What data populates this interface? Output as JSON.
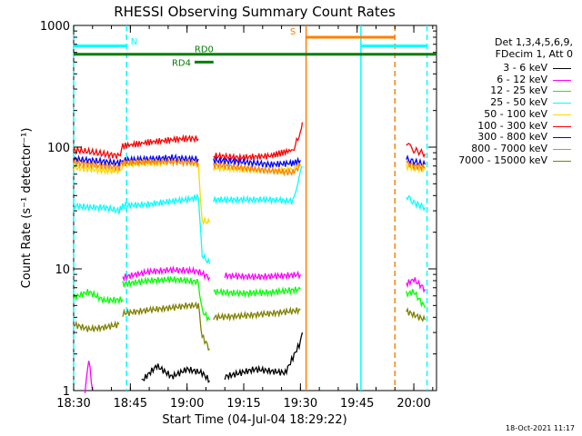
{
  "chart_data": {
    "type": "line",
    "title": "RHESSI Observing Summary Count Rates",
    "xlabel": "Start Time (04-Jul-04 18:29:22)",
    "ylabel": "Count Rate (s⁻¹ detector⁻¹)",
    "y_scale": "log",
    "ylim": [
      1,
      1000
    ],
    "xlim_minutes": [
      0,
      96
    ],
    "x_ticks": [
      {
        "label": "18:30",
        "minute": 0
      },
      {
        "label": "18:45",
        "minute": 15
      },
      {
        "label": "19:00",
        "minute": 30
      },
      {
        "label": "19:15",
        "minute": 45
      },
      {
        "label": "19:30",
        "minute": 60
      },
      {
        "label": "19:45",
        "minute": 75
      },
      {
        "label": "20:00",
        "minute": 90
      }
    ],
    "y_ticks": [
      {
        "label": "1",
        "value": 1
      },
      {
        "label": "10",
        "value": 10
      },
      {
        "label": "100",
        "value": 100
      },
      {
        "label": "1000",
        "value": 1000
      }
    ],
    "legend_header": [
      "Det 1,3,4,5,6,9,",
      "FDecim 1, Att 0"
    ],
    "series": [
      {
        "name": "3 - 6 keV",
        "color": "#000000",
        "segments": [
          [
            [
              18,
              1.2
            ],
            [
              22,
              1.6
            ],
            [
              26,
              1.3
            ],
            [
              30,
              1.5
            ],
            [
              34,
              1.4
            ],
            [
              36,
              1.2
            ]
          ],
          [
            [
              40,
              1.3
            ],
            [
              48,
              1.5
            ],
            [
              56,
              1.4
            ],
            [
              60,
              2.5
            ],
            [
              60.5,
              3
            ]
          ]
        ]
      },
      {
        "name": "6 - 12 keV",
        "color": "#ff00ff",
        "segments": [
          [
            [
              3,
              1.0
            ],
            [
              4,
              1.8
            ],
            [
              5,
              1.0
            ]
          ],
          [
            [
              13,
              8.5
            ],
            [
              20,
              9.5
            ],
            [
              26,
              9.8
            ],
            [
              30,
              9.7
            ],
            [
              33,
              9.5
            ],
            [
              36,
              8.5
            ]
          ],
          [
            [
              40,
              8.8
            ],
            [
              48,
              8.6
            ],
            [
              56,
              8.8
            ],
            [
              60,
              9.0
            ]
          ],
          [
            [
              88,
              7.5
            ],
            [
              90,
              8.2
            ],
            [
              93,
              6.8
            ]
          ]
        ]
      },
      {
        "name": "12 - 25 keV",
        "color": "#00ff00",
        "segments": [
          [
            [
              0,
              5.8
            ],
            [
              4,
              6.5
            ],
            [
              8,
              5.5
            ],
            [
              13,
              5.6
            ]
          ],
          [
            [
              13,
              7.5
            ],
            [
              20,
              8.0
            ],
            [
              26,
              8.2
            ],
            [
              30,
              8.0
            ],
            [
              33,
              7.8
            ],
            [
              34,
              4.5
            ],
            [
              36,
              3.8
            ]
          ],
          [
            [
              37,
              6.5
            ],
            [
              44,
              6.3
            ],
            [
              52,
              6.4
            ],
            [
              60,
              6.8
            ]
          ],
          [
            [
              88,
              6.2
            ],
            [
              90,
              6.5
            ],
            [
              93,
              4.8
            ]
          ]
        ]
      },
      {
        "name": "25 - 50 keV",
        "color": "#00ffff",
        "segments": [
          [
            [
              0,
              33
            ],
            [
              4,
              32
            ],
            [
              8,
              32
            ],
            [
              12,
              30
            ],
            [
              13,
              33
            ],
            [
              20,
              34
            ],
            [
              26,
              36
            ],
            [
              30,
              37
            ],
            [
              33,
              39
            ],
            [
              34,
              13
            ],
            [
              36,
              11
            ]
          ],
          [
            [
              37,
              37
            ],
            [
              44,
              37
            ],
            [
              52,
              37
            ],
            [
              58,
              36
            ],
            [
              60,
              60
            ],
            [
              60.5,
              70
            ]
          ],
          [
            [
              88,
              40
            ],
            [
              90,
              35
            ],
            [
              93,
              32
            ]
          ]
        ]
      },
      {
        "name": "50 - 100 keV",
        "color": "#ffd700",
        "segments": [
          [
            [
              0,
              68
            ],
            [
              4,
              66
            ],
            [
              8,
              64
            ],
            [
              12,
              64
            ],
            [
              13,
              72
            ],
            [
              20,
              74
            ],
            [
              26,
              76
            ],
            [
              30,
              75
            ],
            [
              33,
              73
            ],
            [
              34,
              25
            ],
            [
              36,
              24
            ]
          ],
          [
            [
              37,
              68
            ],
            [
              44,
              66
            ],
            [
              52,
              64
            ],
            [
              58,
              66
            ],
            [
              60,
              74
            ]
          ],
          [
            [
              88,
              70
            ],
            [
              90,
              68
            ],
            [
              93,
              66
            ]
          ]
        ]
      },
      {
        "name": "100 - 300 keV",
        "color": "#ff0000",
        "segments": [
          [
            [
              0,
              95
            ],
            [
              4,
              92
            ],
            [
              8,
              88
            ],
            [
              12,
              85
            ],
            [
              13,
              102
            ],
            [
              20,
              110
            ],
            [
              26,
              115
            ],
            [
              30,
              118
            ],
            [
              33,
              117
            ]
          ],
          [
            [
              37,
              85
            ],
            [
              44,
              82
            ],
            [
              52,
              85
            ],
            [
              58,
              95
            ],
            [
              60,
              130
            ],
            [
              60.5,
              160
            ]
          ],
          [
            [
              88,
              105
            ],
            [
              90,
              95
            ],
            [
              93,
              88
            ]
          ]
        ]
      },
      {
        "name": "300 - 800 keV",
        "color": "#0000ff",
        "segments": [
          [
            [
              0,
              80
            ],
            [
              4,
              78
            ],
            [
              8,
              76
            ],
            [
              12,
              74
            ],
            [
              13,
              78
            ],
            [
              20,
              80
            ],
            [
              26,
              82
            ],
            [
              30,
              80
            ],
            [
              33,
              80
            ]
          ],
          [
            [
              37,
              78
            ],
            [
              44,
              76
            ],
            [
              52,
              72
            ],
            [
              58,
              74
            ],
            [
              60,
              78
            ]
          ],
          [
            [
              88,
              80
            ],
            [
              90,
              76
            ],
            [
              93,
              72
            ]
          ]
        ]
      },
      {
        "name": "800 - 7000 keV",
        "color": "#ff8000",
        "segments": [
          [
            [
              0,
              75
            ],
            [
              4,
              72
            ],
            [
              8,
              70
            ],
            [
              12,
              68
            ],
            [
              13,
              74
            ],
            [
              20,
              76
            ],
            [
              26,
              76
            ],
            [
              30,
              75
            ],
            [
              33,
              74
            ]
          ],
          [
            [
              37,
              72
            ],
            [
              44,
              68
            ],
            [
              52,
              64
            ],
            [
              58,
              62
            ],
            [
              60,
              70
            ]
          ],
          [
            [
              88,
              74
            ],
            [
              90,
              70
            ],
            [
              93,
              68
            ]
          ]
        ]
      },
      {
        "name": "7000 - 15000 keV",
        "color": "#808000",
        "segments": [
          [
            [
              0,
              3.5
            ],
            [
              4,
              3.2
            ],
            [
              8,
              3.3
            ],
            [
              12,
              3.5
            ]
          ],
          [
            [
              13,
              4.3
            ],
            [
              20,
              4.6
            ],
            [
              26,
              4.8
            ],
            [
              30,
              5.0
            ],
            [
              33,
              5.0
            ],
            [
              34,
              2.8
            ],
            [
              36,
              2.2
            ]
          ],
          [
            [
              37,
              4.0
            ],
            [
              44,
              4.1
            ],
            [
              52,
              4.3
            ],
            [
              58,
              4.5
            ],
            [
              60,
              4.6
            ]
          ],
          [
            [
              88,
              4.5
            ],
            [
              90,
              4.2
            ],
            [
              93,
              3.8
            ]
          ]
        ]
      }
    ],
    "annotations": {
      "vertical_lines": [
        {
          "minute": 0,
          "color": "#00ffff",
          "style": "dash"
        },
        {
          "minute": 14,
          "color": "#00ffff",
          "style": "dash"
        },
        {
          "minute": 61.5,
          "color": "#ff8000",
          "style": "solid"
        },
        {
          "minute": 76,
          "color": "#00ffff",
          "style": "solid"
        },
        {
          "minute": 85,
          "color": "#ff8000",
          "style": "dash"
        },
        {
          "minute": 93.5,
          "color": "#00ffff",
          "style": "dash"
        }
      ],
      "bars": [
        {
          "label": "",
          "color": "#00ffff",
          "from": 0,
          "to": 14,
          "value": 680
        },
        {
          "label": "",
          "color": "#00ffff",
          "from": 76,
          "to": 93.5,
          "value": 680
        },
        {
          "label": "",
          "color": "#ff8000",
          "from": 61.5,
          "to": 85,
          "value": 800
        },
        {
          "label": "",
          "color": "#008000",
          "from": 0,
          "to": 96,
          "value": 580
        },
        {
          "label": "RD4",
          "color": "#008000",
          "from": 32,
          "to": 37,
          "value": 500
        }
      ],
      "labels": [
        {
          "text": "N",
          "color": "#00ffff",
          "minute": 16,
          "value": 700
        },
        {
          "text": "S",
          "color": "#ff8000",
          "minute": 58,
          "value": 840
        },
        {
          "text": "RD0",
          "color": "#008000",
          "minute": 34.5,
          "value": 600
        }
      ]
    }
  },
  "footer": {
    "stamp": "18-Oct-2021 11:17"
  }
}
